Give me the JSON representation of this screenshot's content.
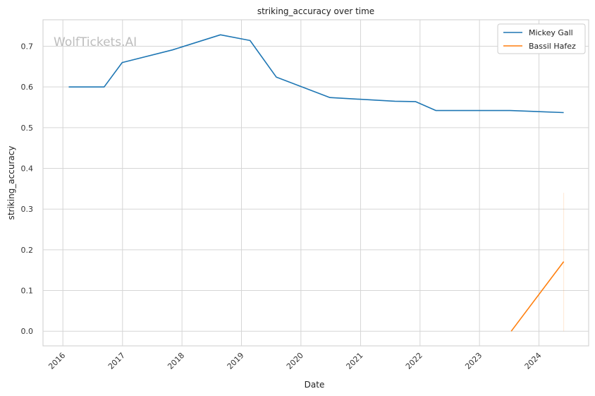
{
  "watermark": "WolfTickets.AI",
  "chart_data": {
    "type": "line",
    "title": "striking_accuracy over time",
    "xlabel": "Date",
    "ylabel": "striking_accuracy",
    "x_type": "date",
    "xlim": [
      "2015-09-01",
      "2024-11-01"
    ],
    "ylim": [
      -0.036,
      0.765
    ],
    "x_ticks": [
      "2016",
      "2017",
      "2018",
      "2019",
      "2020",
      "2021",
      "2022",
      "2023",
      "2024"
    ],
    "y_ticks": [
      "0.0",
      "0.1",
      "0.2",
      "0.3",
      "0.4",
      "0.5",
      "0.6",
      "0.7"
    ],
    "grid": true,
    "legend_position": "top-right",
    "series": [
      {
        "name": "Mickey Gall",
        "color": "#1f77b4",
        "points": [
          [
            "2016-02-06",
            0.6
          ],
          [
            "2016-09-10",
            0.6
          ],
          [
            "2016-12-30",
            0.66
          ],
          [
            "2017-11-04",
            0.691
          ],
          [
            "2018-08-25",
            0.728
          ],
          [
            "2019-02-23",
            0.714
          ],
          [
            "2019-08-03",
            0.624
          ],
          [
            "2020-06-27",
            0.574
          ],
          [
            "2021-07-31",
            0.565
          ],
          [
            "2021-12-04",
            0.564
          ],
          [
            "2022-04-09",
            0.542
          ],
          [
            "2023-07-08",
            0.542
          ],
          [
            "2024-06-01",
            0.537
          ]
        ]
      },
      {
        "name": "Bassil Hafez",
        "color": "#ff7f0e",
        "points": [
          [
            "2023-07-15",
            0.0
          ],
          [
            "2024-06-01",
            0.171
          ]
        ]
      }
    ]
  }
}
